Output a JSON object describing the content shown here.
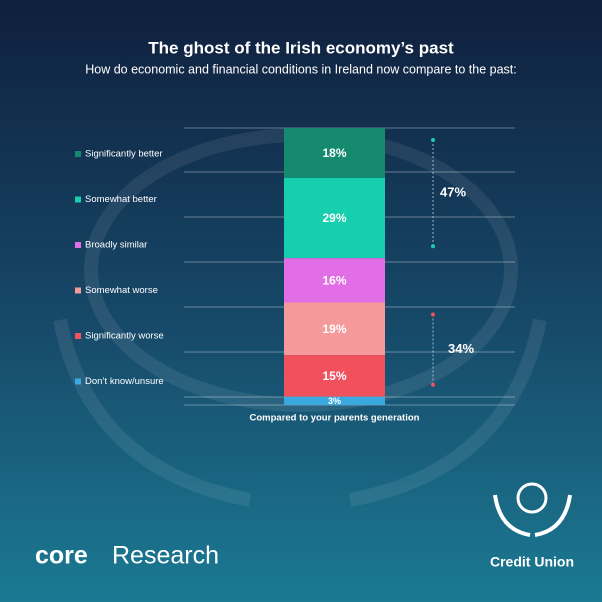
{
  "chart_data": {
    "type": "stacked_bar",
    "title": "The ghost of the Irish economy’s past",
    "subtitle": "How do economic and financial conditions in Ireland now compare to the past:",
    "categories": [
      "Compared to your parents generation"
    ],
    "ylim": [
      0,
      100
    ],
    "series": [
      {
        "name": "Significantly better",
        "color": "#168a6e",
        "values": [
          18
        ],
        "value_labels": [
          "18%"
        ]
      },
      {
        "name": "Somewhat better",
        "color": "#17cfae",
        "values": [
          29
        ],
        "value_labels": [
          "29%"
        ]
      },
      {
        "name": "Broadly similar",
        "color": "#e26ee6",
        "values": [
          16
        ],
        "value_labels": [
          "16%"
        ]
      },
      {
        "name": "Somewhat worse",
        "color": "#f59a9a",
        "values": [
          19
        ],
        "value_labels": [
          "19%"
        ]
      },
      {
        "name": "Significantly worse",
        "color": "#f0515c",
        "values": [
          15
        ],
        "value_labels": [
          "15%"
        ]
      },
      {
        "name": "Don’t know/unsure",
        "color": "#3aa9e0",
        "values": [
          3
        ],
        "value_labels": [
          "3%"
        ]
      }
    ],
    "brackets": [
      {
        "value": 47,
        "label": "47%"
      },
      {
        "value": 34,
        "label": "34%"
      }
    ],
    "branding": {
      "left_bold": "core",
      "left": "Research",
      "right": "Credit Union"
    }
  }
}
